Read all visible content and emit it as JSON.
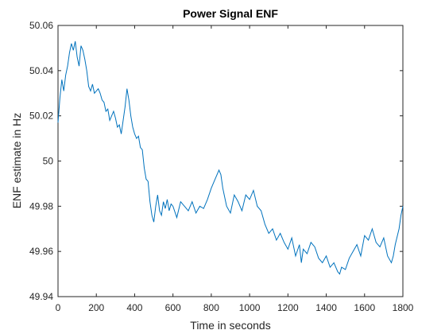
{
  "chart_data": {
    "type": "line",
    "title": "Power Signal ENF",
    "xlabel": "Time in seconds",
    "ylabel": "ENF estimate in Hz",
    "xlim": [
      0,
      1800
    ],
    "ylim": [
      49.94,
      50.06
    ],
    "xticks": [
      0,
      200,
      400,
      600,
      800,
      1000,
      1200,
      1400,
      1600,
      1800
    ],
    "xtick_labels": [
      "0",
      "200",
      "400",
      "600",
      "800",
      "1000",
      "1200",
      "1400",
      "1600",
      "1800"
    ],
    "yticks": [
      49.94,
      49.96,
      49.98,
      50.0,
      50.02,
      50.04,
      50.06
    ],
    "ytick_labels": [
      "49.94",
      "49.96",
      "49.98",
      "50",
      "50.02",
      "50.04",
      "50.06"
    ],
    "grid": false,
    "line_color": "#0072BD",
    "series": [
      {
        "x": [
          0,
          10,
          20,
          30,
          40,
          50,
          60,
          70,
          80,
          90,
          100,
          110,
          120,
          130,
          140,
          150,
          160,
          170,
          180,
          190,
          200,
          210,
          220,
          230,
          240,
          250,
          260,
          270,
          280,
          290,
          300,
          310,
          320,
          330,
          340,
          350,
          360,
          370,
          380,
          390,
          400,
          410,
          420,
          430,
          440,
          450,
          460,
          470,
          480,
          490,
          500,
          510,
          520,
          530,
          540,
          550,
          560,
          570,
          580,
          590,
          600,
          620,
          640,
          660,
          680,
          700,
          720,
          740,
          760,
          780,
          800,
          820,
          840,
          850,
          860,
          870,
          880,
          900,
          920,
          940,
          960,
          980,
          1000,
          1020,
          1040,
          1060,
          1080,
          1100,
          1120,
          1140,
          1160,
          1180,
          1200,
          1220,
          1240,
          1260,
          1270,
          1280,
          1300,
          1320,
          1340,
          1360,
          1380,
          1400,
          1420,
          1440,
          1460,
          1470,
          1480,
          1500,
          1520,
          1540,
          1560,
          1580,
          1600,
          1620,
          1640,
          1660,
          1680,
          1700,
          1720,
          1740,
          1750,
          1760,
          1780,
          1790,
          1800
        ],
        "y": [
          50.017,
          50.028,
          50.036,
          50.031,
          50.038,
          50.042,
          50.048,
          50.052,
          50.049,
          50.053,
          50.046,
          50.042,
          50.051,
          50.049,
          50.045,
          50.04,
          50.033,
          50.031,
          50.034,
          50.03,
          50.031,
          50.032,
          50.03,
          50.027,
          50.026,
          50.022,
          50.023,
          50.018,
          50.02,
          50.022,
          50.019,
          50.015,
          50.016,
          50.012,
          50.018,
          50.024,
          50.032,
          50.027,
          50.02,
          50.015,
          50.012,
          50.01,
          50.011,
          50.006,
          50.005,
          49.997,
          49.992,
          49.991,
          49.982,
          49.976,
          49.973,
          49.98,
          49.985,
          49.978,
          49.976,
          49.982,
          49.979,
          49.983,
          49.978,
          49.981,
          49.98,
          49.975,
          49.982,
          49.98,
          49.978,
          49.982,
          49.977,
          49.98,
          49.979,
          49.983,
          49.988,
          49.992,
          49.996,
          49.994,
          49.988,
          49.984,
          49.98,
          49.977,
          49.985,
          49.982,
          49.978,
          49.985,
          49.983,
          49.987,
          49.98,
          49.978,
          49.972,
          49.968,
          49.97,
          49.965,
          49.968,
          49.964,
          49.961,
          49.966,
          49.958,
          49.963,
          49.955,
          49.961,
          49.959,
          49.964,
          49.962,
          49.957,
          49.955,
          49.958,
          49.953,
          49.955,
          49.951,
          49.95,
          49.953,
          49.952,
          49.957,
          49.96,
          49.963,
          49.958,
          49.967,
          49.965,
          49.97,
          49.964,
          49.962,
          49.966,
          49.958,
          49.955,
          49.958,
          49.963,
          49.97,
          49.976,
          49.98
        ]
      }
    ]
  }
}
